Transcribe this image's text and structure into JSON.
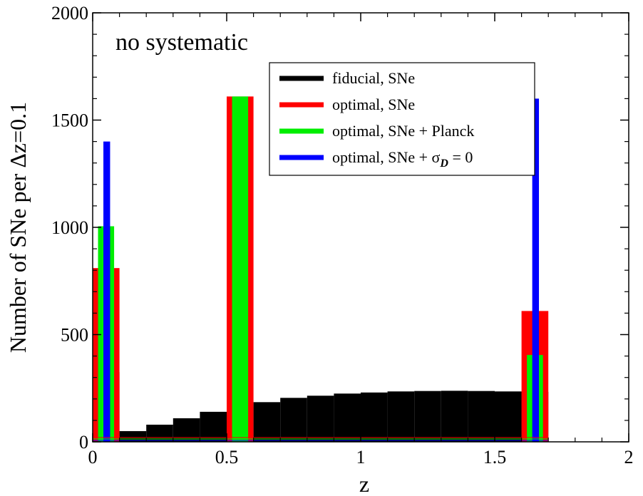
{
  "chart_data": {
    "type": "bar",
    "title": "",
    "annotation": "no systematic",
    "xlabel": "z",
    "ylabel": "Number of SNe per Δz=0.1",
    "xlim": [
      0,
      2
    ],
    "ylim": [
      0,
      2000
    ],
    "x_ticks": [
      "0",
      "0.5",
      "1",
      "1.5",
      "2"
    ],
    "y_ticks": [
      "0",
      "500",
      "1000",
      "1500",
      "2000"
    ],
    "x_tick_values": [
      0,
      0.5,
      1,
      1.5,
      2
    ],
    "y_tick_values": [
      0,
      500,
      1000,
      1500,
      2000
    ],
    "grid": false,
    "legend_position": "top-right",
    "series": [
      {
        "name": "fiducial, SNe",
        "legend_label": "fiducial, SNe",
        "color": "#000000",
        "bins": [
          {
            "x0": 0.0,
            "x1": 0.1,
            "y": 325
          },
          {
            "x0": 0.1,
            "x1": 0.2,
            "y": 50
          },
          {
            "x0": 0.2,
            "x1": 0.3,
            "y": 80
          },
          {
            "x0": 0.3,
            "x1": 0.4,
            "y": 110
          },
          {
            "x0": 0.4,
            "x1": 0.5,
            "y": 140
          },
          {
            "x0": 0.5,
            "x1": 0.6,
            "y": 165
          },
          {
            "x0": 0.6,
            "x1": 0.7,
            "y": 185
          },
          {
            "x0": 0.7,
            "x1": 0.8,
            "y": 205
          },
          {
            "x0": 0.8,
            "x1": 0.9,
            "y": 215
          },
          {
            "x0": 0.9,
            "x1": 1.0,
            "y": 225
          },
          {
            "x0": 1.0,
            "x1": 1.1,
            "y": 230
          },
          {
            "x0": 1.1,
            "x1": 1.2,
            "y": 235
          },
          {
            "x0": 1.2,
            "x1": 1.3,
            "y": 237
          },
          {
            "x0": 1.3,
            "x1": 1.4,
            "y": 238
          },
          {
            "x0": 1.4,
            "x1": 1.5,
            "y": 237
          },
          {
            "x0": 1.5,
            "x1": 1.6,
            "y": 235
          },
          {
            "x0": 1.6,
            "x1": 1.7,
            "y": 233
          }
        ]
      },
      {
        "name": "optimal, SNe",
        "legend_label": "optimal, SNe",
        "color": "#ff0000",
        "bins": [
          {
            "x0": 0.0,
            "x1": 0.1,
            "y": 810
          },
          {
            "x0": 0.5,
            "x1": 0.6,
            "y": 1610
          },
          {
            "x0": 1.6,
            "x1": 1.7,
            "y": 610
          }
        ]
      },
      {
        "name": "optimal, SNe + Planck",
        "legend_label": "optimal, SNe + Planck",
        "color": "#00ee00",
        "bins": [
          {
            "x0": 0.02,
            "x1": 0.08,
            "y": 1005
          },
          {
            "x0": 0.52,
            "x1": 0.58,
            "y": 1610
          },
          {
            "x0": 1.62,
            "x1": 1.68,
            "y": 405
          }
        ]
      },
      {
        "name": "optimal, SNe + σD = 0",
        "legend_label": "optimal, SNe + ",
        "legend_sigma": "σ",
        "legend_subscript": "D",
        "legend_suffix": " = 0",
        "color": "#0000ff",
        "bins": [
          {
            "x0": 0.04,
            "x1": 0.065,
            "y": 1400
          },
          {
            "x0": 1.64,
            "x1": 1.665,
            "y": 1600
          }
        ]
      }
    ]
  }
}
